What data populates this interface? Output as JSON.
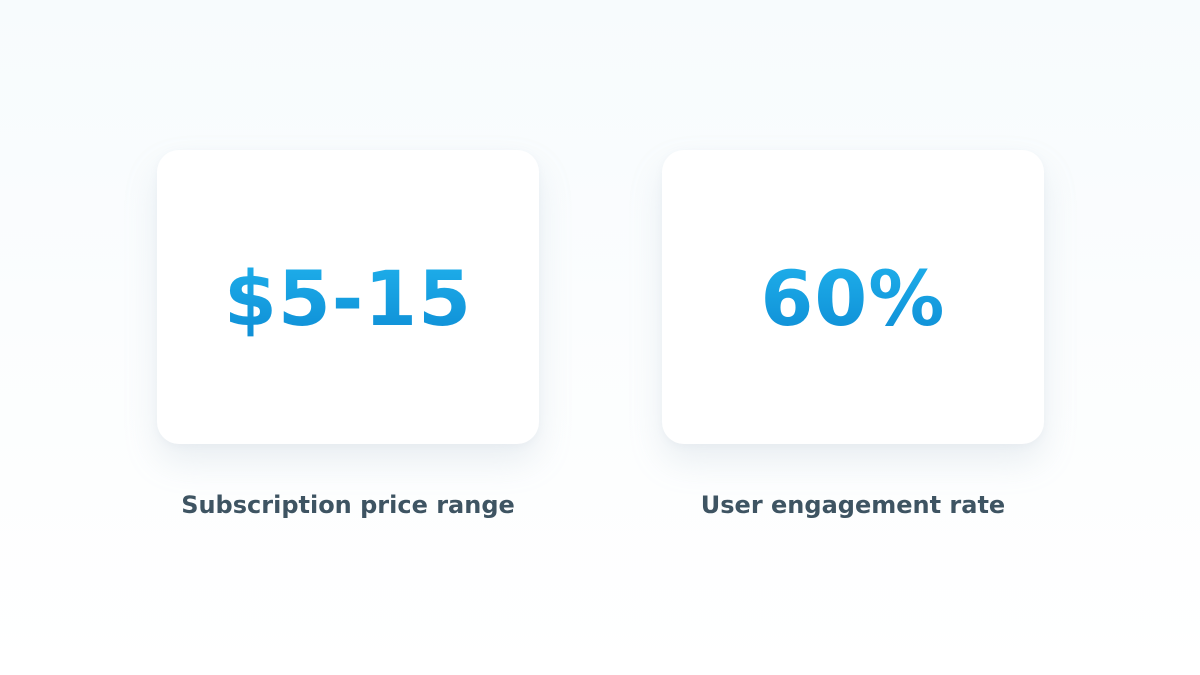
{
  "stats": [
    {
      "value": "$5-15",
      "caption": "Subscription price range"
    },
    {
      "value": "60%",
      "caption": "User engagement rate"
    }
  ],
  "colors": {
    "accent": "#16a0e0",
    "caption_text": "#3e5462",
    "card_background": "#ffffff",
    "page_background": "#f9fcfe"
  }
}
